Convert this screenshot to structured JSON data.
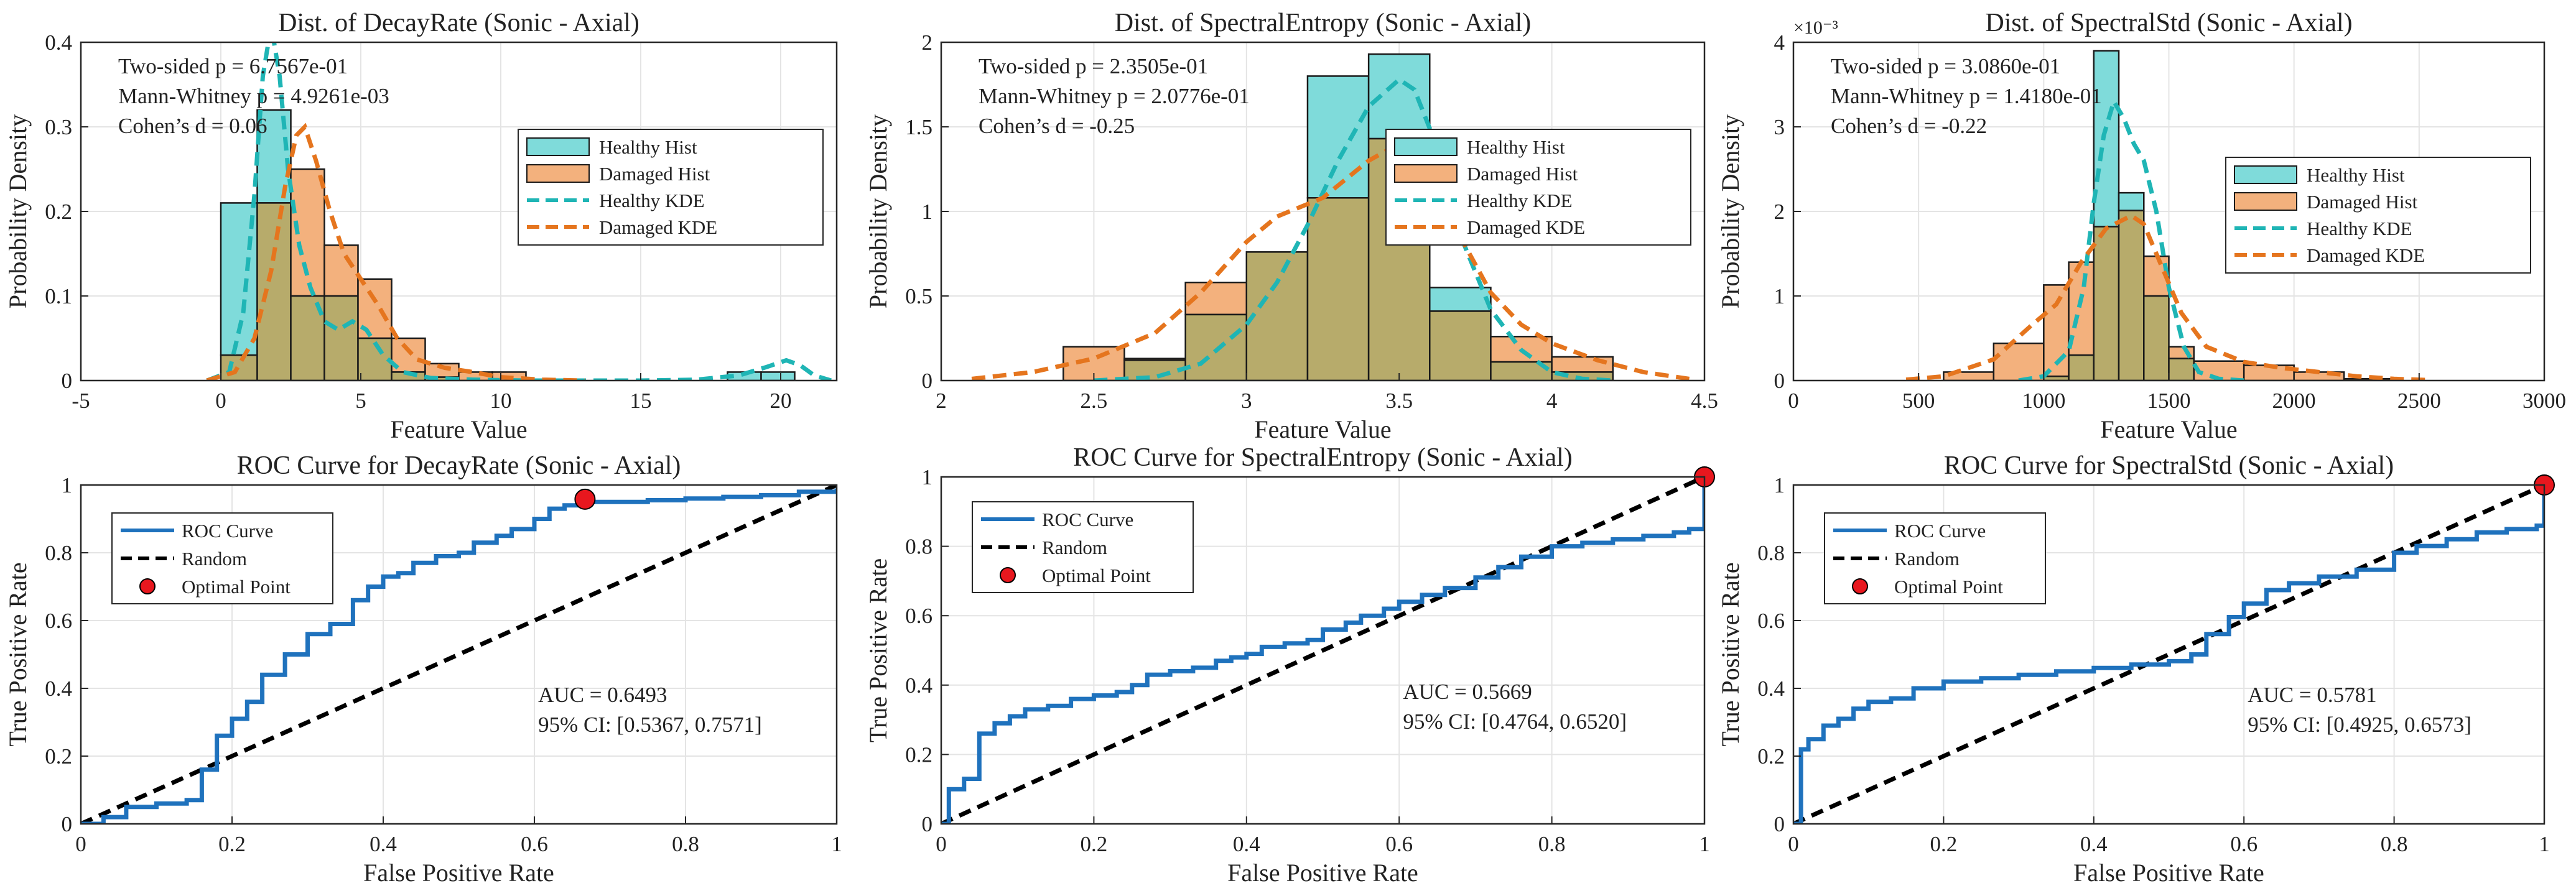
{
  "figure": {
    "colors": {
      "healthy_hist": "#7fdbda",
      "damaged_hist": "#f3b17d",
      "overlap": "#b7ab6b",
      "healthy_kde": "#1fb5b5",
      "damaged_kde": "#e5751e",
      "roc": "#1f72bd",
      "random": "#000000",
      "optimal": "#e8171e"
    },
    "legend_hist": [
      "Healthy Hist",
      "Damaged Hist",
      "Healthy KDE",
      "Damaged KDE"
    ],
    "legend_roc": [
      "ROC Curve",
      "Random",
      "Optimal Point"
    ]
  },
  "chart_data": [
    {
      "type": "bar",
      "title": "Dist. of DecayRate (Sonic - Axial)",
      "xlabel": "Feature Value",
      "ylabel": "Probability Density",
      "xlim": [
        -5,
        22
      ],
      "ylim": [
        0,
        0.4
      ],
      "xticks": [
        -5,
        0,
        5,
        10,
        15,
        20
      ],
      "xtick_labels": [
        "-5",
        "0",
        "5",
        "10",
        "15",
        "20"
      ],
      "yticks": [
        0,
        0.1,
        0.2,
        0.3,
        0.4
      ],
      "ytick_labels": [
        "0",
        "0.1",
        "0.2",
        "0.3",
        "0.4"
      ],
      "y_exponent": "",
      "legend_position": "upper-right",
      "annotations": [
        "Two-sided p = 6.7567e-01",
        "Mann-Whitney p = 4.9261e-03",
        "Cohen’s d = 0.06"
      ],
      "bins": [
        0,
        1.3,
        2.5,
        3.7,
        4.9,
        6.1,
        7.3,
        8.5,
        9.7,
        10.9,
        12.1,
        13.3,
        14.5,
        15.7,
        16.9,
        18.1,
        19.3,
        20.5
      ],
      "healthy": [
        0.21,
        0.32,
        0.1,
        0.1,
        0.05,
        0.01,
        0.004,
        0,
        0,
        0,
        0,
        0,
        0,
        0,
        0,
        0.01,
        0.01
      ],
      "damaged": [
        0.03,
        0.21,
        0.25,
        0.16,
        0.12,
        0.05,
        0.02,
        0.01,
        0.01,
        0,
        0,
        0,
        0,
        0,
        0,
        0,
        0
      ],
      "healthy_kde": {
        "x": [
          -0.5,
          0.3,
          0.8,
          1.2,
          1.5,
          1.8,
          2.1,
          2.4,
          2.8,
          3.2,
          3.7,
          4.2,
          4.7,
          5.2,
          5.8,
          6.5,
          7.5,
          9,
          11,
          13,
          15,
          17,
          18.5,
          19.5,
          20.2,
          20.7,
          21.2,
          21.8
        ],
        "y": [
          0,
          0.01,
          0.08,
          0.22,
          0.36,
          0.42,
          0.36,
          0.25,
          0.16,
          0.11,
          0.07,
          0.06,
          0.07,
          0.06,
          0.03,
          0.01,
          0.003,
          0.001,
          0,
          0,
          0,
          0.001,
          0.006,
          0.016,
          0.024,
          0.018,
          0.006,
          0
        ]
      },
      "damaged_kde": {
        "x": [
          -0.5,
          0.5,
          1.2,
          1.8,
          2.3,
          2.7,
          3.0,
          3.4,
          3.9,
          4.4,
          5.0,
          5.6,
          6.3,
          7.0,
          8.0,
          9.0,
          10.0,
          11.5,
          13
        ],
        "y": [
          0,
          0.01,
          0.05,
          0.13,
          0.23,
          0.29,
          0.3,
          0.26,
          0.2,
          0.15,
          0.12,
          0.09,
          0.05,
          0.025,
          0.015,
          0.01,
          0.004,
          0.001,
          0
        ]
      }
    },
    {
      "type": "bar",
      "title": "Dist. of SpectralEntropy (Sonic - Axial)",
      "xlabel": "Feature Value",
      "ylabel": "Probability Density",
      "xlim": [
        2,
        4.5
      ],
      "ylim": [
        0,
        2
      ],
      "xticks": [
        2,
        2.5,
        3,
        3.5,
        4,
        4.5
      ],
      "xtick_labels": [
        "2",
        "2.5",
        "3",
        "3.5",
        "4",
        "4.5"
      ],
      "yticks": [
        0,
        0.5,
        1,
        1.5,
        2
      ],
      "ytick_labels": [
        "0",
        "0.5",
        "1",
        "1.5",
        "2"
      ],
      "y_exponent": "",
      "legend_position": "upper-right",
      "annotations": [
        "Two-sided p = 2.3505e-01",
        "Mann-Whitney p = 2.0776e-01",
        "Cohen’s d = -0.25"
      ],
      "bins": [
        2.4,
        2.6,
        2.8,
        3.0,
        3.2,
        3.4,
        3.6,
        3.8,
        4.0,
        4.2
      ],
      "healthy": [
        0,
        0.12,
        0.39,
        0.76,
        1.8,
        1.93,
        0.55,
        0.11,
        0.05
      ],
      "damaged": [
        0.2,
        0.13,
        0.58,
        0.76,
        1.08,
        1.43,
        0.41,
        0.26,
        0.14
      ],
      "healthy_kde": {
        "x": [
          2.5,
          2.7,
          2.85,
          3.0,
          3.1,
          3.2,
          3.3,
          3.4,
          3.5,
          3.55,
          3.62,
          3.7,
          3.8,
          3.9,
          4.0,
          4.1,
          4.2
        ],
        "y": [
          0,
          0.02,
          0.1,
          0.33,
          0.58,
          0.92,
          1.3,
          1.62,
          1.78,
          1.72,
          1.4,
          0.86,
          0.42,
          0.18,
          0.05,
          0.01,
          0
        ]
      },
      "damaged_kde": {
        "x": [
          2.1,
          2.3,
          2.5,
          2.7,
          2.85,
          3.0,
          3.1,
          3.25,
          3.4,
          3.5,
          3.6,
          3.7,
          3.8,
          3.9,
          4.0,
          4.15,
          4.3,
          4.45
        ],
        "y": [
          0.01,
          0.05,
          0.13,
          0.28,
          0.52,
          0.82,
          0.97,
          1.08,
          1.3,
          1.4,
          1.22,
          0.85,
          0.52,
          0.33,
          0.22,
          0.12,
          0.05,
          0.01
        ]
      }
    },
    {
      "type": "bar",
      "title": "Dist. of SpectralStd (Sonic - Axial)",
      "xlabel": "Feature Value",
      "ylabel": "Probability Density",
      "xlim": [
        0,
        3000
      ],
      "ylim": [
        0,
        4
      ],
      "xticks": [
        0,
        500,
        1000,
        1500,
        2000,
        2500,
        3000
      ],
      "xtick_labels": [
        "0",
        "500",
        "1000",
        "1500",
        "2000",
        "2500",
        "3000"
      ],
      "yticks": [
        0,
        1,
        2,
        3,
        4
      ],
      "ytick_labels": [
        "0",
        "1",
        "2",
        "3",
        "4"
      ],
      "y_exponent": "×10⁻³",
      "legend_position": "upper-right",
      "annotations": [
        "Two-sided p = 3.0860e-01",
        "Mann-Whitney p = 1.4180e-01",
        "Cohen’s d = -0.22"
      ],
      "bins": [
        600,
        800,
        1000,
        1100,
        1200,
        1300,
        1400,
        1500,
        1600,
        1800,
        2000,
        2200,
        2400
      ],
      "healthy": [
        0,
        0,
        0.05,
        0.3,
        3.9,
        2.22,
        1.0,
        0.26,
        0,
        0,
        0,
        0
      ],
      "damaged": [
        0.1,
        0.44,
        1.13,
        1.4,
        1.82,
        2.01,
        1.47,
        0.4,
        0.23,
        0.18,
        0.1,
        0.02
      ],
      "healthy_kde": {
        "x": [
          900,
          1000,
          1100,
          1160,
          1200,
          1240,
          1280,
          1320,
          1360,
          1400,
          1450,
          1500,
          1560,
          1620,
          1700,
          1800
        ],
        "y": [
          0,
          0.05,
          0.35,
          1.1,
          2.1,
          2.9,
          3.3,
          3.1,
          2.8,
          2.6,
          2.0,
          1.1,
          0.4,
          0.1,
          0.02,
          0
        ]
      },
      "damaged_kde": {
        "x": [
          450,
          600,
          800,
          950,
          1050,
          1150,
          1250,
          1350,
          1400,
          1450,
          1550,
          1650,
          1800,
          1950,
          2100,
          2250,
          2400,
          2550
        ],
        "y": [
          0.01,
          0.05,
          0.25,
          0.65,
          0.9,
          1.4,
          1.8,
          1.95,
          1.85,
          1.5,
          0.8,
          0.4,
          0.22,
          0.15,
          0.1,
          0.05,
          0.02,
          0.005
        ]
      }
    },
    {
      "type": "line",
      "title": "ROC Curve for DecayRate (Sonic - Axial)",
      "xlabel": "False Positive Rate",
      "ylabel": "True Positive Rate",
      "xlim": [
        0,
        1
      ],
      "ylim": [
        0,
        1
      ],
      "xticks": [
        0,
        0.2,
        0.4,
        0.6,
        0.8,
        1
      ],
      "xtick_labels": [
        "0",
        "0.2",
        "0.4",
        "0.6",
        "0.8",
        "1"
      ],
      "yticks": [
        0,
        0.2,
        0.4,
        0.6,
        0.8,
        1
      ],
      "ytick_labels": [
        "0",
        "0.2",
        "0.4",
        "0.6",
        "0.8",
        "1"
      ],
      "legend_position": "upper-left",
      "annotations": [
        "AUC = 0.6493",
        "95% CI: [0.5367, 0.7571]"
      ],
      "roc": {
        "x": [
          0,
          0.03,
          0.06,
          0.1,
          0.14,
          0.16,
          0.18,
          0.2,
          0.22,
          0.24,
          0.27,
          0.3,
          0.33,
          0.36,
          0.38,
          0.4,
          0.42,
          0.44,
          0.47,
          0.5,
          0.52,
          0.55,
          0.57,
          0.6,
          0.62,
          0.64,
          0.67,
          0.7,
          0.75,
          0.8,
          0.85,
          0.9,
          0.95,
          1
        ],
        "y": [
          0,
          0.02,
          0.05,
          0.06,
          0.07,
          0.16,
          0.26,
          0.31,
          0.36,
          0.44,
          0.5,
          0.56,
          0.59,
          0.66,
          0.7,
          0.73,
          0.74,
          0.77,
          0.79,
          0.8,
          0.83,
          0.85,
          0.87,
          0.9,
          0.93,
          0.94,
          0.95,
          0.95,
          0.955,
          0.96,
          0.965,
          0.97,
          0.98,
          0.99
        ]
      },
      "random": {
        "x": [
          0,
          1
        ],
        "y": [
          0,
          1
        ]
      },
      "optimal": {
        "x": 0.667,
        "y": 0.958
      }
    },
    {
      "type": "line",
      "title": "ROC Curve for SpectralEntropy (Sonic - Axial)",
      "xlabel": "False Positive Rate",
      "ylabel": "True Positive Rate",
      "xlim": [
        0,
        1
      ],
      "ylim": [
        0,
        1
      ],
      "xticks": [
        0,
        0.2,
        0.4,
        0.6,
        0.8,
        1
      ],
      "xtick_labels": [
        "0",
        "0.2",
        "0.4",
        "0.6",
        "0.8",
        "1"
      ],
      "yticks": [
        0,
        0.2,
        0.4,
        0.6,
        0.8,
        1
      ],
      "ytick_labels": [
        "0",
        "0.2",
        "0.4",
        "0.6",
        "0.8",
        "1"
      ],
      "legend_position": "upper-left",
      "annotations": [
        "AUC = 0.5669",
        "95% CI: [0.4764, 0.6520]"
      ],
      "roc": {
        "x": [
          0,
          0.01,
          0.03,
          0.05,
          0.07,
          0.09,
          0.11,
          0.14,
          0.17,
          0.2,
          0.23,
          0.25,
          0.27,
          0.3,
          0.33,
          0.36,
          0.38,
          0.4,
          0.42,
          0.45,
          0.48,
          0.5,
          0.53,
          0.55,
          0.58,
          0.6,
          0.63,
          0.66,
          0.7,
          0.73,
          0.76,
          0.8,
          0.84,
          0.88,
          0.92,
          0.96,
          0.98,
          1
        ],
        "y": [
          0,
          0.1,
          0.13,
          0.26,
          0.29,
          0.31,
          0.33,
          0.34,
          0.36,
          0.37,
          0.38,
          0.4,
          0.43,
          0.44,
          0.45,
          0.47,
          0.48,
          0.49,
          0.51,
          0.52,
          0.53,
          0.56,
          0.58,
          0.6,
          0.62,
          0.64,
          0.66,
          0.68,
          0.71,
          0.74,
          0.77,
          0.8,
          0.81,
          0.82,
          0.83,
          0.84,
          0.85,
          1
        ]
      },
      "random": {
        "x": [
          0,
          1
        ],
        "y": [
          0,
          1
        ]
      },
      "optimal": {
        "x": 1,
        "y": 1
      }
    },
    {
      "type": "line",
      "title": "ROC Curve for SpectralStd (Sonic - Axial)",
      "xlabel": "False Positive Rate",
      "ylabel": "True Positive Rate",
      "xlim": [
        0,
        1
      ],
      "ylim": [
        0,
        1
      ],
      "xticks": [
        0,
        0.2,
        0.4,
        0.6,
        0.8,
        1
      ],
      "xtick_labels": [
        "0",
        "0.2",
        "0.4",
        "0.6",
        "0.8",
        "1"
      ],
      "yticks": [
        0,
        0.2,
        0.4,
        0.6,
        0.8,
        1
      ],
      "ytick_labels": [
        "0",
        "0.2",
        "0.4",
        "0.6",
        "0.8",
        "1"
      ],
      "legend_position": "upper-left",
      "annotations": [
        "AUC = 0.5781",
        "95% CI: [0.4925, 0.6573]"
      ],
      "roc": {
        "x": [
          0,
          0.01,
          0.02,
          0.04,
          0.06,
          0.08,
          0.1,
          0.13,
          0.16,
          0.2,
          0.25,
          0.3,
          0.35,
          0.4,
          0.45,
          0.5,
          0.53,
          0.55,
          0.58,
          0.6,
          0.63,
          0.66,
          0.7,
          0.75,
          0.8,
          0.83,
          0.87,
          0.91,
          0.95,
          0.99,
          1
        ],
        "y": [
          0,
          0.22,
          0.25,
          0.29,
          0.31,
          0.34,
          0.36,
          0.37,
          0.4,
          0.42,
          0.43,
          0.44,
          0.45,
          0.46,
          0.47,
          0.48,
          0.5,
          0.56,
          0.61,
          0.65,
          0.69,
          0.71,
          0.73,
          0.75,
          0.8,
          0.82,
          0.84,
          0.86,
          0.87,
          0.88,
          1
        ]
      },
      "random": {
        "x": [
          0,
          1
        ],
        "y": [
          0,
          1
        ]
      },
      "optimal": {
        "x": 1,
        "y": 1
      }
    }
  ]
}
